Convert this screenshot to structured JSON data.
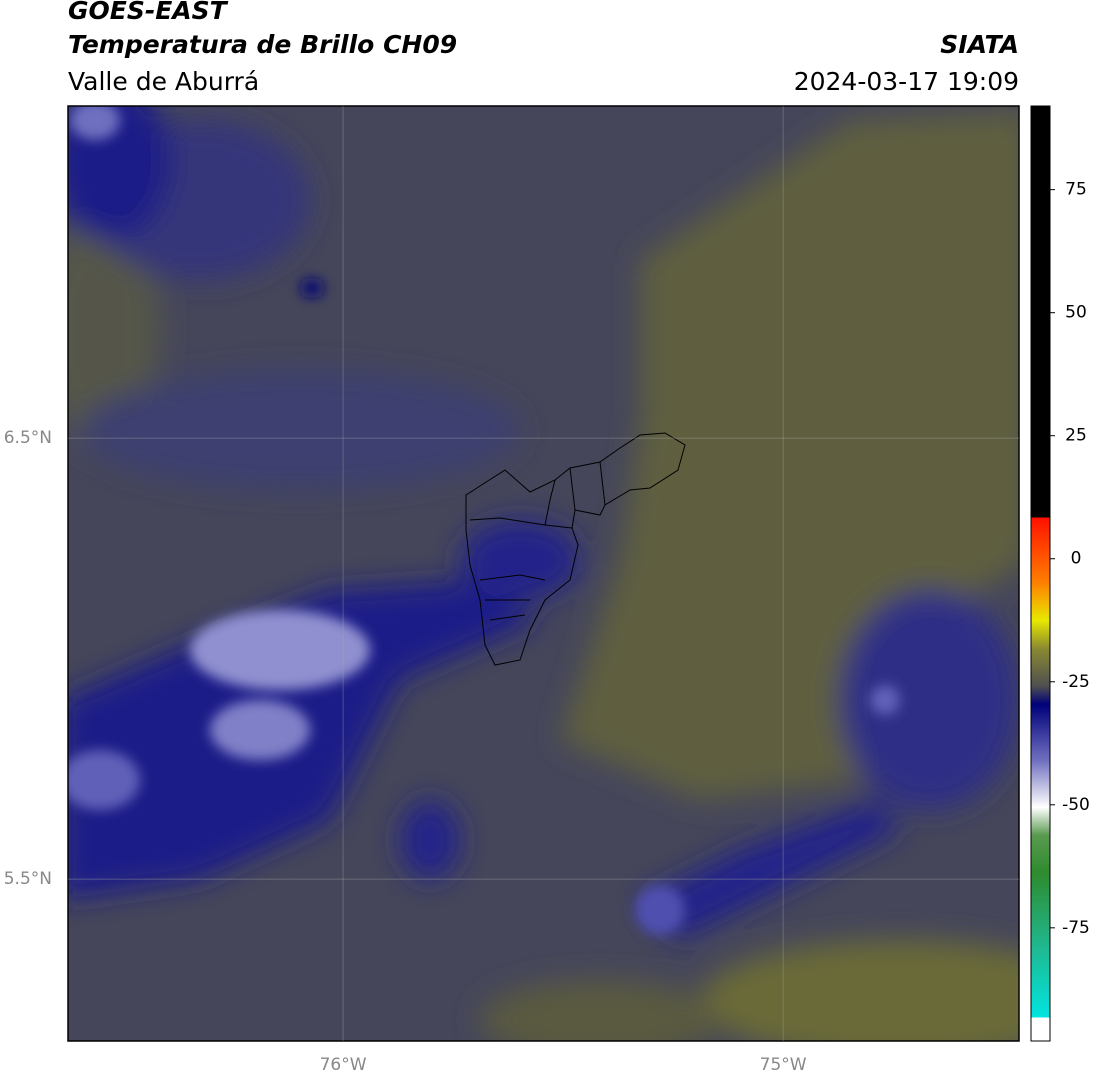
{
  "header": {
    "title": "GOES-EAST",
    "subtitle": "Temperatura de Brillo CH09",
    "region": "Valle de Aburrá",
    "source": "SIATA",
    "timestamp": "2024-03-17 19:09"
  },
  "map": {
    "xlim": [
      -76.625,
      -74.464
    ],
    "ylim": [
      5.133,
      7.253
    ],
    "xticks": [
      {
        "value": -76,
        "label": "76°W"
      },
      {
        "value": -75,
        "label": "75°W"
      }
    ],
    "yticks": [
      {
        "value": 6.5,
        "label": "6.5°N"
      },
      {
        "value": 5.5,
        "label": "5.5°N"
      }
    ],
    "grid": true
  },
  "colorbar": {
    "lim": [
      -98,
      92
    ],
    "ticks": [
      75,
      50,
      25,
      0,
      -25,
      -50,
      -75
    ]
  }
}
